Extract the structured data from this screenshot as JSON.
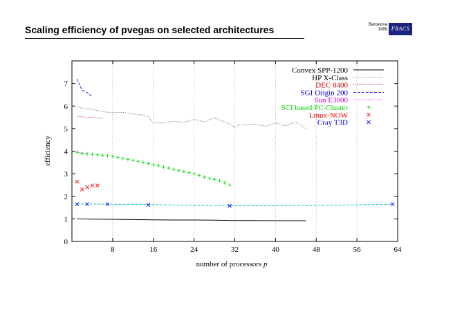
{
  "slide": {
    "title_prefix": "Scaling efficiency of ",
    "title_code": "pvegas",
    "title_suffix": " on selected architectures",
    "badge_line1": "Barcelona",
    "badge_line2": "1999",
    "badge_logo": "FRACS"
  },
  "chart_data": {
    "type": "line",
    "title": "",
    "xlabel": "number of processors",
    "xlabel_var": "p",
    "ylabel": "efficiency",
    "xlim": [
      0,
      64
    ],
    "ylim": [
      0,
      8
    ],
    "xticks": [
      8,
      16,
      24,
      32,
      40,
      48,
      56,
      64
    ],
    "yticks": [
      0,
      1,
      2,
      3,
      4,
      5,
      6,
      7
    ],
    "grid": "vertical-dotted",
    "legend": "top-right",
    "series": [
      {
        "name": "Convex SPP-1200",
        "style": "line-solid",
        "color": "#000000",
        "x": [
          1,
          4,
          8,
          12,
          16,
          20,
          24,
          28,
          32,
          36,
          40,
          44,
          46
        ],
        "y": [
          1.0,
          0.99,
          0.98,
          0.97,
          0.96,
          0.95,
          0.95,
          0.94,
          0.93,
          0.93,
          0.92,
          0.92,
          0.92
        ]
      },
      {
        "name": "HP X-Class",
        "style": "line-dotted",
        "color": "#555555",
        "x": [
          1,
          2,
          4,
          6,
          8,
          10,
          12,
          14,
          15,
          16,
          18,
          20,
          22,
          24,
          26,
          28,
          29,
          30,
          31,
          32,
          33,
          34,
          36,
          38,
          40,
          42,
          44,
          46
        ],
        "y": [
          5.98,
          5.9,
          5.85,
          5.75,
          5.7,
          5.72,
          5.65,
          5.6,
          5.52,
          5.25,
          5.25,
          5.32,
          5.28,
          5.4,
          5.3,
          5.48,
          5.38,
          5.3,
          5.2,
          5.05,
          5.2,
          5.15,
          5.2,
          5.1,
          5.25,
          5.12,
          5.3,
          5.0
        ]
      },
      {
        "name": "DEC 8400",
        "style": "line-dotted",
        "color": "#cc0000",
        "x": [
          1,
          2,
          3,
          4,
          5,
          6
        ],
        "y": [
          5.55,
          5.52,
          5.5,
          5.5,
          5.48,
          5.45
        ]
      },
      {
        "name": "SGI Origin 200",
        "style": "line-dashed",
        "color": "#0000cc",
        "x": [
          1,
          2,
          3,
          4
        ],
        "y": [
          7.2,
          6.7,
          6.6,
          6.4
        ]
      },
      {
        "name": "Sun E3000",
        "style": "line-dotted",
        "color": "#cc00cc",
        "x": [
          1,
          2,
          3
        ],
        "y": [
          3.95,
          3.92,
          3.9
        ]
      },
      {
        "name": "SCI based PC-Cluster",
        "style": "points-plus",
        "color": "#00dd00",
        "x": [
          1,
          2,
          3,
          4,
          5,
          6,
          7,
          8,
          9,
          10,
          11,
          12,
          13,
          14,
          15,
          16,
          17,
          18,
          19,
          20,
          21,
          22,
          23,
          24,
          25,
          26,
          27,
          28,
          29,
          30,
          31
        ],
        "y": [
          3.95,
          3.9,
          3.88,
          3.86,
          3.84,
          3.82,
          3.8,
          3.77,
          3.72,
          3.68,
          3.64,
          3.6,
          3.55,
          3.5,
          3.45,
          3.4,
          3.35,
          3.3,
          3.25,
          3.2,
          3.15,
          3.1,
          3.05,
          3.0,
          2.93,
          2.85,
          2.8,
          2.75,
          2.68,
          2.6,
          2.5
        ]
      },
      {
        "name": "Linux-NOW",
        "style": "points-x",
        "color": "#ff0000",
        "x": [
          1,
          2,
          3,
          4,
          5
        ],
        "y": [
          2.65,
          2.3,
          2.4,
          2.48,
          2.48
        ]
      },
      {
        "name": "Cray T3D",
        "style": "points-x",
        "color": "#0000ff",
        "x": [
          1,
          3,
          7,
          15,
          31,
          63
        ],
        "y": [
          1.65,
          1.65,
          1.65,
          1.62,
          1.58,
          1.65
        ],
        "guide_line": {
          "style": "dashed",
          "color": "#00bbbb",
          "x": [
            1,
            8,
            16,
            24,
            31,
            40,
            48,
            56,
            63
          ],
          "y": [
            1.66,
            1.65,
            1.63,
            1.6,
            1.58,
            1.58,
            1.6,
            1.62,
            1.65
          ]
        }
      }
    ]
  }
}
